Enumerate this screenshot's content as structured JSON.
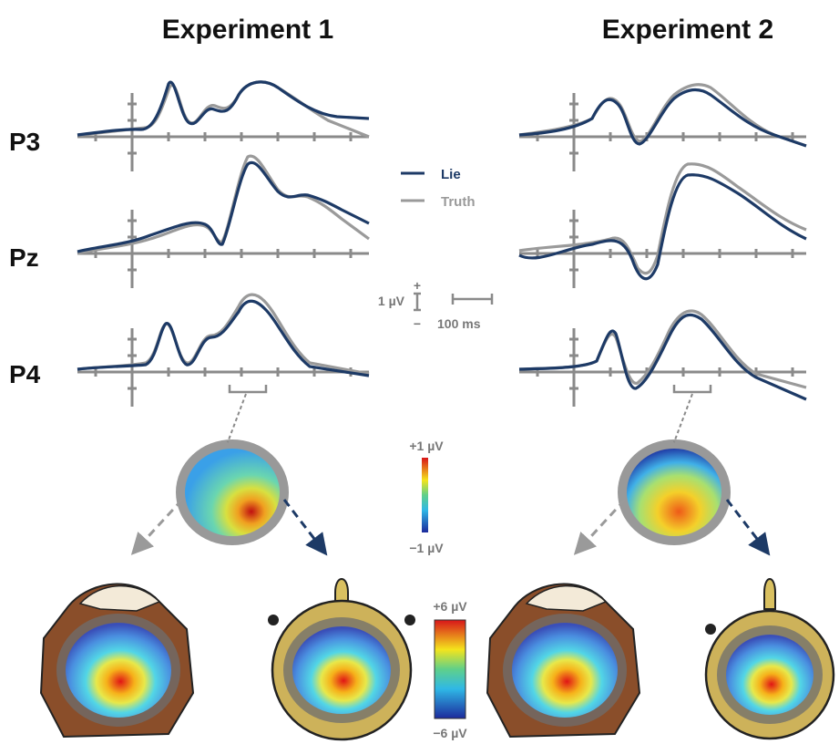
{
  "panels": [
    {
      "title": "Experiment 1"
    },
    {
      "title": "Experiment 2"
    }
  ],
  "electrodes": [
    "P3",
    "Pz",
    "P4"
  ],
  "legend": [
    {
      "name": "Lie",
      "color": "#1d3a66"
    },
    {
      "name": "Truth",
      "color": "#9a9a9a"
    }
  ],
  "scale": {
    "plus": "+",
    "voltage": "1 µV",
    "minus": "−",
    "time": "100 ms"
  },
  "colorbar_small": {
    "top": "+1 µV",
    "bottom": "−1 µV"
  },
  "colorbar_large": {
    "top": "+6 µV",
    "bottom": "−6 µV"
  }
}
